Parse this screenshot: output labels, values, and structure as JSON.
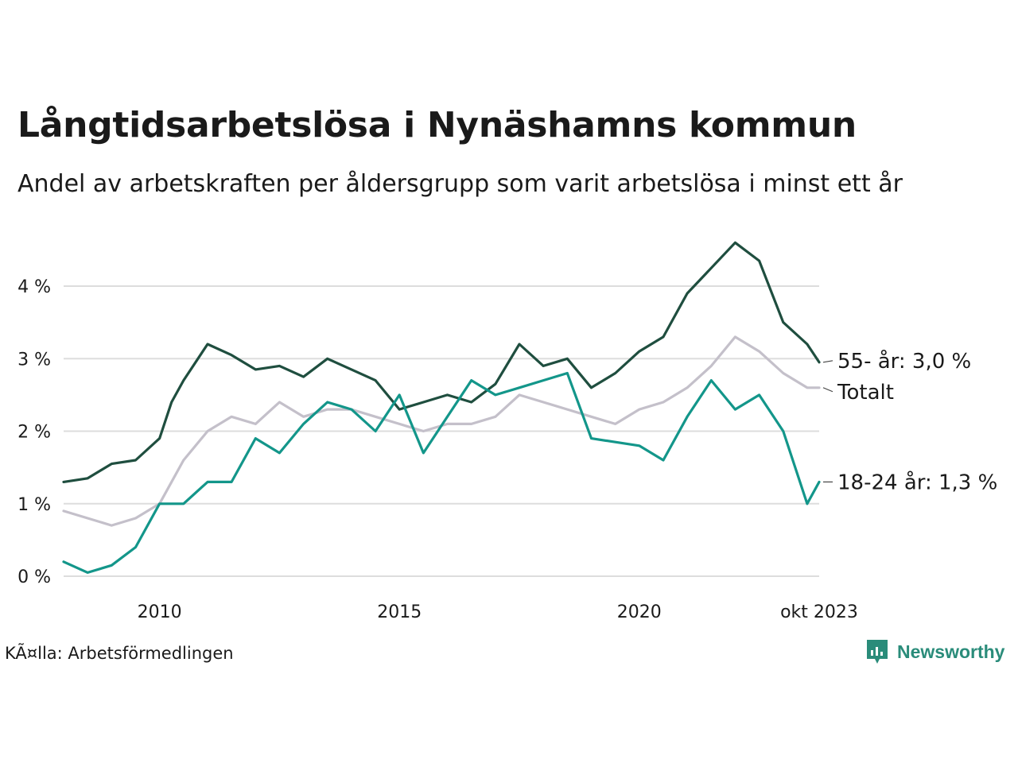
{
  "title": "Långtidsarbetslösa i Nynäshamns kommun",
  "subtitle": "Andel av arbetskraften per åldersgrupp som varit arbetslösa i minst ett år",
  "source": "KÃ¤lla: Arbetsförmedlingen",
  "brand": "Newsworthy",
  "colors": {
    "older": "#1f4e3f",
    "total": "#c4c0ca",
    "young": "#13968a",
    "grid": "#dddddd"
  },
  "chart_data": {
    "type": "line",
    "ylim": [
      0,
      5
    ],
    "xlim": [
      2008.0,
      2023.75
    ],
    "yticks": [
      {
        "v": 0,
        "label": "0 %"
      },
      {
        "v": 1,
        "label": "1 %"
      },
      {
        "v": 2,
        "label": "2 %"
      },
      {
        "v": 3,
        "label": "3 %"
      },
      {
        "v": 4,
        "label": "4 %"
      }
    ],
    "xticks": [
      {
        "v": 2010,
        "label": "2010"
      },
      {
        "v": 2015,
        "label": "2015"
      },
      {
        "v": 2020,
        "label": "2020"
      },
      {
        "v": 2023.75,
        "label": "okt 2023"
      }
    ],
    "series": [
      {
        "name": "Totalt",
        "label": "Totalt",
        "color": "#c4c0ca",
        "x": [
          2008.0,
          2008.5,
          2009.0,
          2009.5,
          2010.0,
          2010.5,
          2011.0,
          2011.5,
          2012.0,
          2012.5,
          2013.0,
          2013.5,
          2014.0,
          2014.5,
          2015.0,
          2015.5,
          2016.0,
          2016.5,
          2017.0,
          2017.5,
          2018.0,
          2018.5,
          2019.0,
          2019.5,
          2020.0,
          2020.5,
          2021.0,
          2021.5,
          2022.0,
          2022.5,
          2023.0,
          2023.5,
          2023.75
        ],
        "values": [
          0.9,
          0.8,
          0.7,
          0.8,
          1.0,
          1.6,
          2.0,
          2.2,
          2.1,
          2.4,
          2.2,
          2.3,
          2.3,
          2.2,
          2.1,
          2.0,
          2.1,
          2.1,
          2.2,
          2.5,
          2.4,
          2.3,
          2.2,
          2.1,
          2.3,
          2.4,
          2.6,
          2.9,
          3.3,
          3.1,
          2.8,
          2.6,
          2.6
        ]
      },
      {
        "name": "55- år",
        "label": "55- år: 3,0 %",
        "color": "#1f4e3f",
        "x": [
          2008.0,
          2008.5,
          2009.0,
          2009.5,
          2010.0,
          2010.25,
          2010.5,
          2011.0,
          2011.5,
          2012.0,
          2012.5,
          2013.0,
          2013.5,
          2014.0,
          2014.5,
          2015.0,
          2015.5,
          2016.0,
          2016.5,
          2017.0,
          2017.5,
          2018.0,
          2018.5,
          2019.0,
          2019.5,
          2020.0,
          2020.5,
          2021.0,
          2021.5,
          2022.0,
          2022.5,
          2023.0,
          2023.5,
          2023.75
        ],
        "values": [
          1.3,
          1.35,
          1.55,
          1.6,
          1.9,
          2.4,
          2.7,
          3.2,
          3.05,
          2.85,
          2.9,
          2.75,
          3.0,
          2.85,
          2.7,
          2.3,
          2.4,
          2.5,
          2.4,
          2.65,
          3.2,
          2.9,
          3.0,
          2.6,
          2.8,
          3.1,
          3.3,
          3.9,
          4.25,
          4.6,
          4.35,
          3.5,
          3.2,
          2.95
        ]
      },
      {
        "name": "18-24 år",
        "label": "18-24 år: 1,3 %",
        "color": "#13968a",
        "x": [
          2008.0,
          2008.5,
          2009.0,
          2009.5,
          2010.0,
          2010.5,
          2011.0,
          2011.5,
          2012.0,
          2012.5,
          2013.0,
          2013.5,
          2014.0,
          2014.5,
          2015.0,
          2015.5,
          2016.0,
          2016.5,
          2017.0,
          2017.5,
          2018.0,
          2018.5,
          2019.0,
          2019.5,
          2020.0,
          2020.5,
          2021.0,
          2021.5,
          2022.0,
          2022.5,
          2023.0,
          2023.5,
          2023.75
        ],
        "values": [
          0.2,
          0.05,
          0.15,
          0.4,
          1.0,
          1.0,
          1.3,
          1.3,
          1.9,
          1.7,
          2.1,
          2.4,
          2.3,
          2.0,
          2.5,
          1.7,
          2.2,
          2.7,
          2.5,
          2.6,
          2.7,
          2.8,
          1.9,
          1.85,
          1.8,
          1.6,
          2.2,
          2.7,
          2.3,
          2.5,
          2.0,
          1.0,
          1.3
        ]
      }
    ]
  }
}
